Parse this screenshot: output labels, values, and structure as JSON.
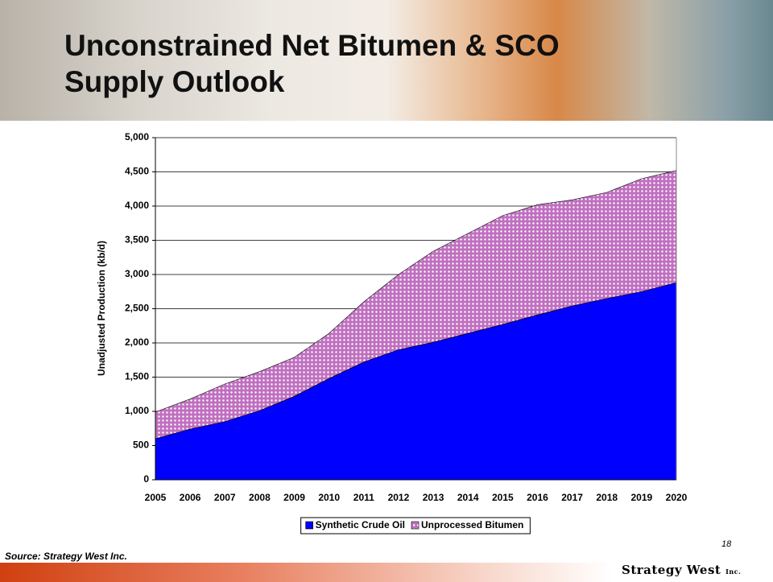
{
  "chart_data": {
    "type": "stacked_area",
    "title": "Unconstrained Net Bitumen & SCO Supply Outlook",
    "y_label": "Unadjusted Production (kb/d)",
    "categories": [
      "2005",
      "2006",
      "2007",
      "2008",
      "2009",
      "2010",
      "2011",
      "2012",
      "2013",
      "2014",
      "2015",
      "2016",
      "2017",
      "2018",
      "2019",
      "2020"
    ],
    "series": [
      {
        "name": "Synthetic Crude Oil",
        "color": "#0000ff",
        "values": [
          600,
          740,
          850,
          1010,
          1220,
          1480,
          1720,
          1900,
          2010,
          2140,
          2270,
          2410,
          2540,
          2650,
          2750,
          2880
        ]
      },
      {
        "name": "Unprocessed Bitumen",
        "color": "#cc88cc",
        "values": [
          390,
          440,
          550,
          570,
          570,
          660,
          880,
          1100,
          1330,
          1460,
          1590,
          1610,
          1550,
          1550,
          1650,
          1640
        ]
      }
    ],
    "ylim": [
      0,
      5000
    ],
    "yticks": [
      0,
      500,
      {
        "value": 1000,
        "label": "1,000"
      },
      {
        "value": 1500,
        "label": "1,500"
      },
      {
        "value": 2000,
        "label": "2,000"
      },
      {
        "value": 2500,
        "label": "2,500"
      },
      {
        "value": 3000,
        "label": "3,000"
      },
      {
        "value": 3500,
        "label": "3,500"
      },
      {
        "value": 4000,
        "label": "4,000"
      },
      {
        "value": 4500,
        "label": "4,500"
      },
      {
        "value": 5000,
        "label": "5,000"
      }
    ],
    "grid": true,
    "legend": "bottom"
  },
  "footer": {
    "source": "Source: Strategy West Inc.",
    "page": "18",
    "logo": "Strategy",
    "logo2": "West",
    "logo3": "Inc."
  }
}
